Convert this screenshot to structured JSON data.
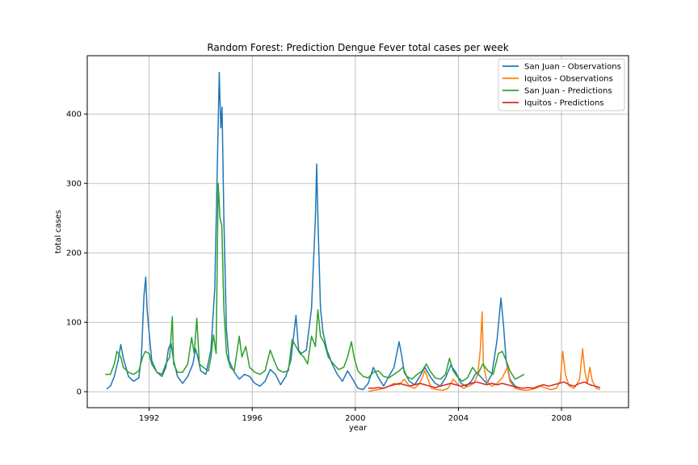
{
  "chart_data": {
    "type": "line",
    "title": "Random Forest: Prediction Dengue Fever total cases per week",
    "xlabel": "year",
    "ylabel": "total cases",
    "xlim": [
      1989.6,
      2010.6
    ],
    "ylim": [
      -23,
      484
    ],
    "x_ticks": [
      1992,
      1996,
      2000,
      2004,
      2008
    ],
    "y_ticks": [
      0,
      100,
      200,
      300,
      400
    ],
    "grid": true,
    "legend_position": "top-right",
    "series": [
      {
        "name": "San Juan - Observations",
        "color": "#1f77b4",
        "points": [
          [
            1990.35,
            4
          ],
          [
            1990.5,
            8
          ],
          [
            1990.65,
            22
          ],
          [
            1990.8,
            45
          ],
          [
            1990.9,
            68
          ],
          [
            1991.0,
            48
          ],
          [
            1991.1,
            35
          ],
          [
            1991.2,
            22
          ],
          [
            1991.4,
            15
          ],
          [
            1991.6,
            20
          ],
          [
            1991.7,
            50
          ],
          [
            1991.8,
            138
          ],
          [
            1991.87,
            165
          ],
          [
            1991.92,
            120
          ],
          [
            1992.0,
            85
          ],
          [
            1992.1,
            45
          ],
          [
            1992.3,
            28
          ],
          [
            1992.5,
            22
          ],
          [
            1992.65,
            35
          ],
          [
            1992.75,
            62
          ],
          [
            1992.85,
            70
          ],
          [
            1992.95,
            45
          ],
          [
            1993.1,
            22
          ],
          [
            1993.3,
            12
          ],
          [
            1993.5,
            22
          ],
          [
            1993.7,
            40
          ],
          [
            1993.8,
            62
          ],
          [
            1993.9,
            48
          ],
          [
            1994.0,
            30
          ],
          [
            1994.2,
            25
          ],
          [
            1994.4,
            60
          ],
          [
            1994.55,
            150
          ],
          [
            1994.65,
            330
          ],
          [
            1994.72,
            460
          ],
          [
            1994.78,
            380
          ],
          [
            1994.83,
            410
          ],
          [
            1994.9,
            250
          ],
          [
            1995.0,
            90
          ],
          [
            1995.1,
            45
          ],
          [
            1995.3,
            28
          ],
          [
            1995.5,
            18
          ],
          [
            1995.7,
            25
          ],
          [
            1995.9,
            22
          ],
          [
            1996.1,
            12
          ],
          [
            1996.3,
            8
          ],
          [
            1996.5,
            15
          ],
          [
            1996.7,
            32
          ],
          [
            1996.9,
            25
          ],
          [
            1997.1,
            10
          ],
          [
            1997.3,
            22
          ],
          [
            1997.5,
            45
          ],
          [
            1997.7,
            110
          ],
          [
            1997.8,
            60
          ],
          [
            1997.9,
            55
          ],
          [
            1998.1,
            60
          ],
          [
            1998.3,
            120
          ],
          [
            1998.45,
            250
          ],
          [
            1998.5,
            328
          ],
          [
            1998.55,
            250
          ],
          [
            1998.65,
            120
          ],
          [
            1998.75,
            85
          ],
          [
            1998.9,
            60
          ],
          [
            1999.1,
            40
          ],
          [
            1999.3,
            25
          ],
          [
            1999.5,
            15
          ],
          [
            1999.7,
            30
          ],
          [
            1999.9,
            18
          ],
          [
            2000.1,
            5
          ],
          [
            2000.3,
            3
          ],
          [
            2000.5,
            12
          ],
          [
            2000.7,
            35
          ],
          [
            2000.9,
            20
          ],
          [
            2001.1,
            8
          ],
          [
            2001.3,
            22
          ],
          [
            2001.5,
            35
          ],
          [
            2001.7,
            72
          ],
          [
            2001.8,
            52
          ],
          [
            2001.9,
            28
          ],
          [
            2002.1,
            15
          ],
          [
            2002.3,
            10
          ],
          [
            2002.5,
            22
          ],
          [
            2002.7,
            35
          ],
          [
            2002.9,
            22
          ],
          [
            2003.1,
            12
          ],
          [
            2003.3,
            8
          ],
          [
            2003.5,
            20
          ],
          [
            2003.7,
            38
          ],
          [
            2003.9,
            28
          ],
          [
            2004.1,
            12
          ],
          [
            2004.3,
            8
          ],
          [
            2004.5,
            15
          ],
          [
            2004.7,
            28
          ],
          [
            2004.9,
            20
          ],
          [
            2005.1,
            12
          ],
          [
            2005.3,
            25
          ],
          [
            2005.5,
            75
          ],
          [
            2005.65,
            135
          ],
          [
            2005.75,
            95
          ],
          [
            2005.85,
            45
          ],
          [
            2006.0,
            18
          ],
          [
            2006.2,
            8
          ],
          [
            2006.4,
            5
          ]
        ]
      },
      {
        "name": "Iquitos - Observations",
        "color": "#ff7f0e",
        "points": [
          [
            2000.5,
            0
          ],
          [
            2000.7,
            2
          ],
          [
            2000.9,
            3
          ],
          [
            2001.1,
            5
          ],
          [
            2001.3,
            8
          ],
          [
            2001.5,
            12
          ],
          [
            2001.7,
            10
          ],
          [
            2001.9,
            18
          ],
          [
            2002.1,
            8
          ],
          [
            2002.3,
            5
          ],
          [
            2002.5,
            12
          ],
          [
            2002.7,
            30
          ],
          [
            2002.8,
            20
          ],
          [
            2002.95,
            5
          ],
          [
            2003.2,
            3
          ],
          [
            2003.4,
            2
          ],
          [
            2003.6,
            5
          ],
          [
            2003.8,
            18
          ],
          [
            2004.0,
            10
          ],
          [
            2004.2,
            5
          ],
          [
            2004.4,
            8
          ],
          [
            2004.6,
            12
          ],
          [
            2004.75,
            25
          ],
          [
            2004.85,
            60
          ],
          [
            2004.92,
            115
          ],
          [
            2004.97,
            40
          ],
          [
            2005.1,
            15
          ],
          [
            2005.3,
            8
          ],
          [
            2005.5,
            12
          ],
          [
            2005.7,
            20
          ],
          [
            2005.9,
            35
          ],
          [
            2006.0,
            15
          ],
          [
            2006.2,
            5
          ],
          [
            2006.4,
            3
          ],
          [
            2006.6,
            2
          ],
          [
            2006.8,
            3
          ],
          [
            2007.0,
            5
          ],
          [
            2007.2,
            8
          ],
          [
            2007.4,
            5
          ],
          [
            2007.6,
            3
          ],
          [
            2007.8,
            5
          ],
          [
            2007.95,
            15
          ],
          [
            2008.05,
            58
          ],
          [
            2008.15,
            25
          ],
          [
            2008.3,
            8
          ],
          [
            2008.5,
            5
          ],
          [
            2008.7,
            18
          ],
          [
            2008.82,
            62
          ],
          [
            2008.9,
            30
          ],
          [
            2009.0,
            12
          ],
          [
            2009.1,
            35
          ],
          [
            2009.2,
            15
          ],
          [
            2009.35,
            5
          ],
          [
            2009.5,
            3
          ]
        ]
      },
      {
        "name": "San Juan - Predictions",
        "color": "#2ca02c",
        "points": [
          [
            1990.3,
            25
          ],
          [
            1990.5,
            25
          ],
          [
            1990.65,
            40
          ],
          [
            1990.75,
            58
          ],
          [
            1990.9,
            50
          ],
          [
            1991.0,
            35
          ],
          [
            1991.2,
            28
          ],
          [
            1991.4,
            25
          ],
          [
            1991.6,
            30
          ],
          [
            1991.75,
            50
          ],
          [
            1991.85,
            58
          ],
          [
            1992.0,
            55
          ],
          [
            1992.1,
            40
          ],
          [
            1992.3,
            28
          ],
          [
            1992.5,
            25
          ],
          [
            1992.65,
            40
          ],
          [
            1992.8,
            50
          ],
          [
            1992.9,
            108
          ],
          [
            1992.95,
            40
          ],
          [
            1993.1,
            28
          ],
          [
            1993.3,
            28
          ],
          [
            1993.5,
            40
          ],
          [
            1993.65,
            78
          ],
          [
            1993.75,
            55
          ],
          [
            1993.85,
            106
          ],
          [
            1993.95,
            40
          ],
          [
            1994.1,
            35
          ],
          [
            1994.3,
            30
          ],
          [
            1994.4,
            50
          ],
          [
            1994.5,
            82
          ],
          [
            1994.6,
            55
          ],
          [
            1994.68,
            300
          ],
          [
            1994.75,
            250
          ],
          [
            1994.82,
            240
          ],
          [
            1994.9,
            120
          ],
          [
            1995.0,
            55
          ],
          [
            1995.15,
            35
          ],
          [
            1995.3,
            30
          ],
          [
            1995.5,
            80
          ],
          [
            1995.6,
            50
          ],
          [
            1995.75,
            65
          ],
          [
            1995.9,
            35
          ],
          [
            1996.1,
            28
          ],
          [
            1996.3,
            25
          ],
          [
            1996.5,
            30
          ],
          [
            1996.7,
            60
          ],
          [
            1996.85,
            45
          ],
          [
            1997.0,
            32
          ],
          [
            1997.2,
            28
          ],
          [
            1997.4,
            30
          ],
          [
            1997.55,
            75
          ],
          [
            1997.7,
            65
          ],
          [
            1997.85,
            55
          ],
          [
            1998.0,
            50
          ],
          [
            1998.15,
            40
          ],
          [
            1998.3,
            80
          ],
          [
            1998.45,
            65
          ],
          [
            1998.55,
            118
          ],
          [
            1998.65,
            80
          ],
          [
            1998.8,
            70
          ],
          [
            1998.95,
            50
          ],
          [
            1999.15,
            40
          ],
          [
            1999.35,
            32
          ],
          [
            1999.55,
            35
          ],
          [
            1999.7,
            50
          ],
          [
            1999.85,
            72
          ],
          [
            1999.95,
            50
          ],
          [
            2000.1,
            30
          ],
          [
            2000.3,
            22
          ],
          [
            2000.5,
            20
          ],
          [
            2000.7,
            28
          ],
          [
            2000.9,
            30
          ],
          [
            2001.1,
            22
          ],
          [
            2001.3,
            20
          ],
          [
            2001.5,
            25
          ],
          [
            2001.7,
            30
          ],
          [
            2001.85,
            35
          ],
          [
            2002.0,
            22
          ],
          [
            2002.2,
            18
          ],
          [
            2002.4,
            25
          ],
          [
            2002.6,
            30
          ],
          [
            2002.75,
            40
          ],
          [
            2002.9,
            30
          ],
          [
            2003.1,
            20
          ],
          [
            2003.3,
            18
          ],
          [
            2003.5,
            25
          ],
          [
            2003.65,
            48
          ],
          [
            2003.8,
            30
          ],
          [
            2003.95,
            22
          ],
          [
            2004.15,
            15
          ],
          [
            2004.35,
            20
          ],
          [
            2004.55,
            35
          ],
          [
            2004.75,
            25
          ],
          [
            2004.95,
            40
          ],
          [
            2005.15,
            30
          ],
          [
            2005.35,
            25
          ],
          [
            2005.55,
            55
          ],
          [
            2005.7,
            58
          ],
          [
            2005.85,
            45
          ],
          [
            2006.0,
            30
          ],
          [
            2006.2,
            18
          ],
          [
            2006.4,
            22
          ],
          [
            2006.55,
            25
          ]
        ]
      },
      {
        "name": "Iquitos - Predictions",
        "color": "#d62728",
        "points": [
          [
            2000.5,
            5
          ],
          [
            2000.7,
            5
          ],
          [
            2000.9,
            6
          ],
          [
            2001.1,
            5
          ],
          [
            2001.3,
            8
          ],
          [
            2001.5,
            10
          ],
          [
            2001.7,
            12
          ],
          [
            2001.9,
            10
          ],
          [
            2002.1,
            8
          ],
          [
            2002.3,
            10
          ],
          [
            2002.5,
            12
          ],
          [
            2002.7,
            10
          ],
          [
            2002.9,
            8
          ],
          [
            2003.1,
            6
          ],
          [
            2003.3,
            8
          ],
          [
            2003.5,
            10
          ],
          [
            2003.7,
            12
          ],
          [
            2003.9,
            10
          ],
          [
            2004.1,
            8
          ],
          [
            2004.3,
            10
          ],
          [
            2004.5,
            12
          ],
          [
            2004.7,
            14
          ],
          [
            2004.9,
            12
          ],
          [
            2005.1,
            10
          ],
          [
            2005.3,
            12
          ],
          [
            2005.5,
            10
          ],
          [
            2005.7,
            12
          ],
          [
            2005.9,
            10
          ],
          [
            2006.1,
            8
          ],
          [
            2006.3,
            6
          ],
          [
            2006.5,
            5
          ],
          [
            2006.7,
            6
          ],
          [
            2006.9,
            5
          ],
          [
            2007.1,
            8
          ],
          [
            2007.3,
            10
          ],
          [
            2007.5,
            8
          ],
          [
            2007.7,
            10
          ],
          [
            2007.9,
            12
          ],
          [
            2008.1,
            14
          ],
          [
            2008.3,
            10
          ],
          [
            2008.5,
            8
          ],
          [
            2008.7,
            12
          ],
          [
            2008.9,
            14
          ],
          [
            2009.1,
            10
          ],
          [
            2009.3,
            8
          ],
          [
            2009.5,
            6
          ]
        ]
      }
    ]
  }
}
